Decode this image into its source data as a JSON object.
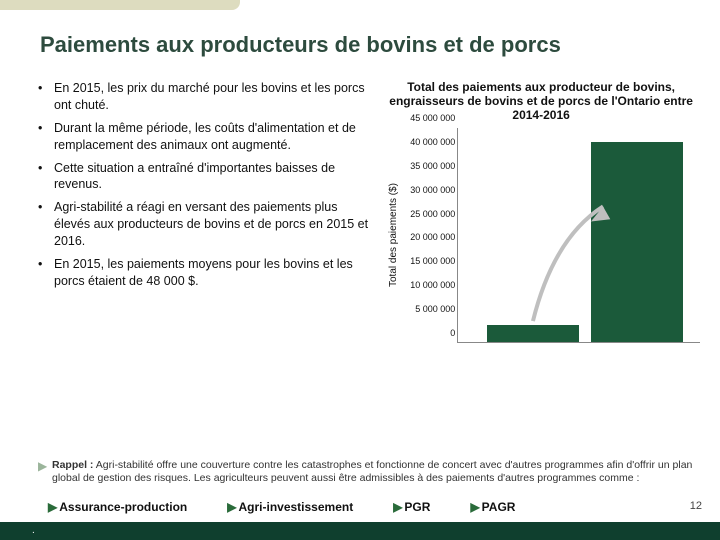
{
  "title": "Paiements aux producteurs de bovins et de porcs",
  "bullets": {
    "marker": "•",
    "items": [
      "En 2015, les prix du marché pour les bovins et les porcs ont chuté.",
      "Durant la même période, les coûts d'alimentation et de remplacement des animaux ont augmenté.",
      "Cette situation a entraîné d'importantes baisses de revenus.",
      "Agri-stabilité a réagi en versant des paiements plus élevés aux producteurs de bovins et de porcs en 2015 et 2016.",
      "En 2015, les paiements moyens pour les bovins et les porcs étaient de 48 000 $."
    ]
  },
  "chart": {
    "type": "bar",
    "title": "Total des paiements aux producteur de bovins, engraisseurs de bovins et de porcs de l'Ontario entre 2014-2016",
    "yaxis_label": "Total des paiements ($)",
    "ylim": [
      0,
      45000000
    ],
    "yticks": [
      0,
      5000000,
      10000000,
      15000000,
      20000000,
      25000000,
      30000000,
      35000000,
      40000000,
      45000000
    ],
    "ytick_labels": [
      "0",
      "5 000 000",
      "10 000 000",
      "15 000 000",
      "20 000 000",
      "25 000 000",
      "30 000 000",
      "35 000 000",
      "40 000 000",
      "45 000 000"
    ],
    "bars": [
      {
        "value": 3500000,
        "color": "#1b5a3a",
        "x_pct": 12
      },
      {
        "value": 42000000,
        "color": "#1b5a3a",
        "x_pct": 55
      }
    ],
    "background_color": "#ffffff",
    "axis_color": "#888888",
    "tick_fontsize": 9,
    "title_fontsize": 12,
    "arrow": {
      "color": "#bfbfbf",
      "from_bar": 0,
      "to_bar": 1
    }
  },
  "rappel": {
    "marker": "▶",
    "lead": "Rappel :",
    "text": "Agri-stabilité offre une couverture contre les catastrophes et fonctionne de concert avec d'autres programmes afin d'offrir un plan global de gestion des risques. Les agriculteurs peuvent aussi être admissibles à des paiements d'autres programmes comme :"
  },
  "programs": {
    "marker": "▶",
    "items": [
      "Assurance-production",
      "Agri-investissement",
      "PGR",
      "PAGR"
    ]
  },
  "page_number": "12",
  "colors": {
    "title": "#2d4b3e",
    "topbar": "#dddcbf",
    "footer": "#0f3f2e",
    "prog_marker": "#2a6b3a",
    "rappel_marker": "#9bb59b"
  }
}
